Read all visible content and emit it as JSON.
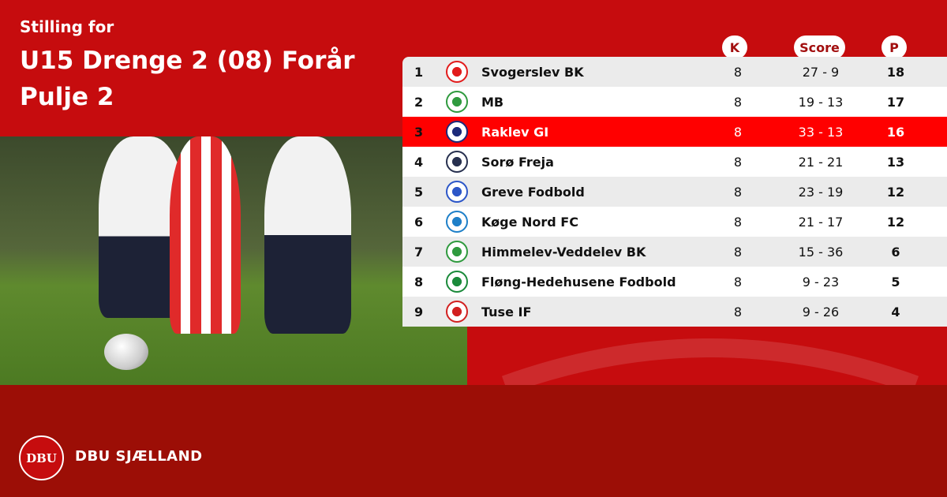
{
  "header": {
    "subtitle": "Stilling for",
    "title_line1": "U15 Drenge 2 (08) Forår",
    "title_line2": "Pulje 2"
  },
  "columns": {
    "k": "K",
    "score": "Score",
    "p": "P"
  },
  "colors": {
    "primary": "#c60c0e",
    "footer": "#9c0e06",
    "highlight": "#ff0000",
    "row_alt": "#ebebeb"
  },
  "rows": [
    {
      "pos": "1",
      "team": "Svogerslev BK",
      "k": "8",
      "score": "27 - 9",
      "p": "18",
      "crest": "#e21b1b"
    },
    {
      "pos": "2",
      "team": "MB",
      "k": "8",
      "score": "19 - 13",
      "p": "17",
      "crest": "#2f9a3e"
    },
    {
      "pos": "3",
      "team": "Raklev GI",
      "k": "8",
      "score": "33 - 13",
      "p": "16",
      "crest": "#1c2a7a",
      "highlight": true
    },
    {
      "pos": "4",
      "team": "Sorø Freja",
      "k": "8",
      "score": "21 - 21",
      "p": "13",
      "crest": "#27304f"
    },
    {
      "pos": "5",
      "team": "Greve Fodbold",
      "k": "8",
      "score": "23 - 19",
      "p": "12",
      "crest": "#2c56c8"
    },
    {
      "pos": "6",
      "team": "Køge Nord FC",
      "k": "8",
      "score": "21 - 17",
      "p": "12",
      "crest": "#1e7fc8"
    },
    {
      "pos": "7",
      "team": "Himmelev-Veddelev BK",
      "k": "8",
      "score": "15 - 36",
      "p": "6",
      "crest": "#2f9a3e"
    },
    {
      "pos": "8",
      "team": "Fløng-Hedehusene Fodbold",
      "k": "8",
      "score": "9 - 23",
      "p": "5",
      "crest": "#1a8a3a"
    },
    {
      "pos": "9",
      "team": "Tuse IF",
      "k": "8",
      "score": "9 - 26",
      "p": "4",
      "crest": "#d22020"
    }
  ],
  "footer": {
    "brand": "DBU SJÆLLAND",
    "logo_text": "DBU"
  }
}
